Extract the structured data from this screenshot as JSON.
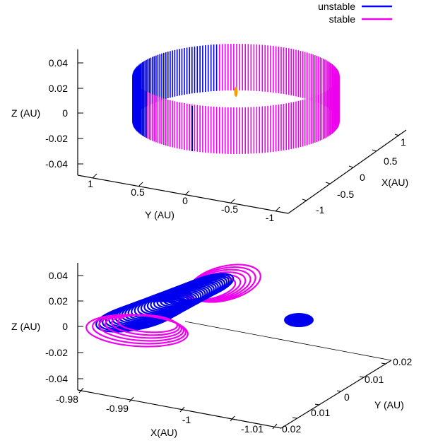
{
  "legend": {
    "position": "top-right",
    "entries": [
      {
        "label": "unstable",
        "color": "#0000ee"
      },
      {
        "label": "stable",
        "color": "#ee00ee"
      }
    ]
  },
  "chart_data": [
    {
      "type": "line",
      "projection": "3d",
      "description_key": "top-panel",
      "zlabel": "Z (AU)",
      "xlabel": "X(AU)",
      "ylabel": "Y (AU)",
      "zticks": [
        "0.04",
        "0.02",
        "0",
        "-0.02",
        "-0.04"
      ],
      "xticks": [
        "1",
        "0.5",
        "0",
        "-0.5",
        "-1"
      ],
      "yticks": [
        "1",
        "0.5",
        "0",
        "-0.5",
        "-1"
      ],
      "zlim": [
        -0.05,
        0.05
      ],
      "xlim": [
        -1.2,
        1.2
      ],
      "ylim": [
        -1.2,
        1.2
      ],
      "series": [
        {
          "name": "unstable",
          "color": "#0000ee",
          "ring_radius": 1.0,
          "z_half_height": 0.035,
          "phase_range_deg": [
            100,
            210
          ]
        },
        {
          "name": "stable",
          "color": "#ee00ee",
          "ring_radius": 1.0,
          "z_half_height": 0.035,
          "phase_range_deg": [
            -150,
            100
          ]
        }
      ],
      "center_marker": {
        "color": "#f0a000",
        "x": 0,
        "y": 0,
        "z": 0.015
      }
    },
    {
      "type": "line",
      "projection": "3d",
      "zlabel": "Z (AU)",
      "xlabel": "X(AU)",
      "ylabel": "Y (AU)",
      "zticks": [
        "0.04",
        "0.02",
        "0",
        "-0.02",
        "-0.04"
      ],
      "xticks": [
        "-0.98",
        "-0.99",
        "-1",
        "-1.01"
      ],
      "yticks": [
        "0.02",
        "0.01",
        "0",
        "0.01",
        "0.02"
      ],
      "zlim": [
        -0.05,
        0.05
      ],
      "xlim": [
        -0.98,
        -1.015
      ],
      "ylim": [
        -0.02,
        0.02
      ],
      "series": [
        {
          "name": "unstable",
          "color": "#0000ee",
          "loops": 26
        },
        {
          "name": "stable",
          "color": "#ee00ee",
          "loops": 12
        }
      ],
      "blob": {
        "color": "#0000ee"
      }
    }
  ]
}
